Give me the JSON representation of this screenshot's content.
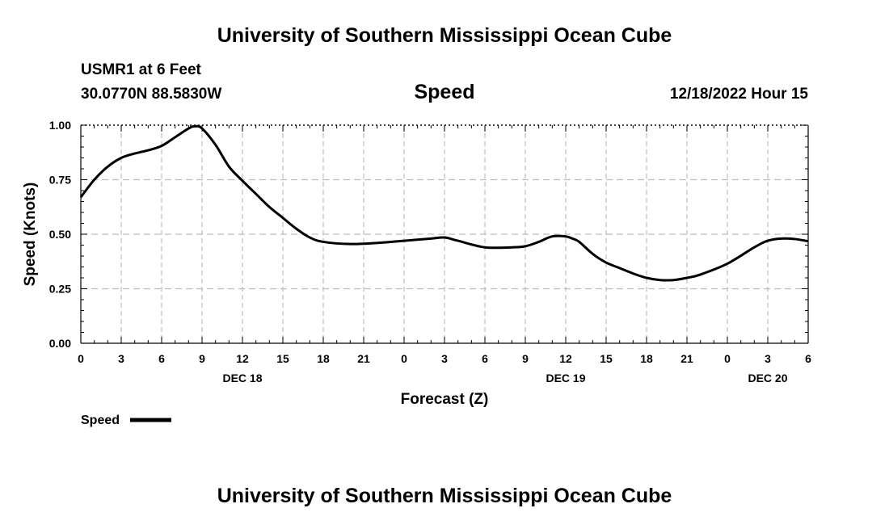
{
  "header": {
    "title_top": "University of Southern Mississippi Ocean Cube",
    "station": "USMR1 at 6 Feet",
    "coords": "30.0770N  88.5830W",
    "datetime": "12/18/2022 Hour 15"
  },
  "footer": {
    "title_bottom": "University of Southern Mississippi Ocean Cube"
  },
  "colors": {
    "line": "#000000",
    "grid": "#bdbdbd"
  },
  "chart_data": {
    "type": "line",
    "title": "Speed",
    "xlabel": "Forecast (Z)",
    "ylabel": "Speed (Knots)",
    "xlim": [
      0,
      54
    ],
    "ylim": [
      0,
      1.0
    ],
    "x_tick_step_hours": 3,
    "x_tick_labels": [
      "0",
      "3",
      "6",
      "9",
      "12",
      "15",
      "18",
      "21",
      "0",
      "3",
      "6",
      "9",
      "12",
      "15",
      "18",
      "21",
      "0",
      "3",
      "6"
    ],
    "y_ticks": [
      0.0,
      0.25,
      0.5,
      0.75,
      1.0
    ],
    "y_tick_labels": [
      "0.00",
      "0.25",
      "0.50",
      "0.75",
      "1.00"
    ],
    "date_labels": [
      {
        "hour": 12,
        "label": "DEC 18"
      },
      {
        "hour": 36,
        "label": "DEC 19"
      },
      {
        "hour": 51,
        "label": "DEC 20"
      }
    ],
    "legend": {
      "label": "Speed",
      "placement": "bottom-left"
    },
    "grid": true,
    "series": [
      {
        "name": "Speed",
        "x": [
          0,
          1,
          2,
          3,
          4,
          5,
          6,
          7,
          8,
          8.5,
          9,
          10,
          11,
          12,
          13,
          14,
          15,
          16,
          17,
          18,
          20,
          22,
          24,
          26,
          27,
          28,
          30,
          32,
          33,
          34,
          35,
          36,
          36.5,
          37,
          38,
          39,
          40,
          41,
          42,
          43,
          44,
          45,
          46,
          48,
          50,
          51,
          52,
          53,
          54
        ],
        "y": [
          0.67,
          0.75,
          0.81,
          0.85,
          0.87,
          0.885,
          0.905,
          0.945,
          0.985,
          0.995,
          0.985,
          0.91,
          0.81,
          0.745,
          0.685,
          0.625,
          0.575,
          0.525,
          0.485,
          0.465,
          0.455,
          0.46,
          0.47,
          0.48,
          0.485,
          0.47,
          0.44,
          0.44,
          0.445,
          0.465,
          0.49,
          0.49,
          0.48,
          0.465,
          0.41,
          0.37,
          0.345,
          0.32,
          0.3,
          0.29,
          0.29,
          0.3,
          0.315,
          0.365,
          0.44,
          0.47,
          0.48,
          0.478,
          0.468
        ]
      }
    ]
  }
}
